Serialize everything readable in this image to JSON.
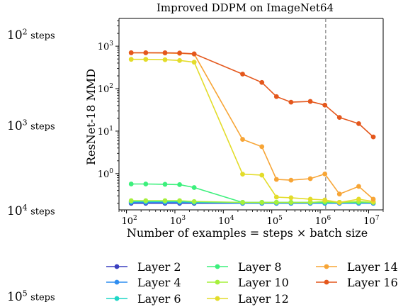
{
  "side_labels": [
    {
      "base": "10",
      "exp": "2",
      "word": "steps"
    },
    {
      "base": "10",
      "exp": "3",
      "word": "steps"
    },
    {
      "base": "10",
      "exp": "4",
      "word": "steps"
    },
    {
      "base": "10",
      "exp": "5",
      "word": "steps"
    }
  ],
  "chart_data": {
    "type": "line",
    "title": "Improved DDPM on ImageNet64",
    "xlabel": "Number of examples = steps × batch size",
    "ylabel": "ResNet-18 MMD",
    "xscale": "log",
    "yscale": "log",
    "xlim": [
      70,
      20000000
    ],
    "ylim": [
      0.14,
      4500
    ],
    "x_ticks": [
      {
        "value": 100,
        "base": "10",
        "exp": "2"
      },
      {
        "value": 1000,
        "base": "10",
        "exp": "3"
      },
      {
        "value": 10000,
        "base": "10",
        "exp": "4"
      },
      {
        "value": 100000,
        "base": "10",
        "exp": "5"
      },
      {
        "value": 1000000,
        "base": "10",
        "exp": "6"
      },
      {
        "value": 10000000,
        "base": "10",
        "exp": "7"
      }
    ],
    "y_ticks": [
      {
        "value": 1,
        "base": "10",
        "exp": "0"
      },
      {
        "value": 10,
        "base": "10",
        "exp": "1"
      },
      {
        "value": 100,
        "base": "10",
        "exp": "2"
      },
      {
        "value": 1000,
        "base": "10",
        "exp": "3"
      }
    ],
    "vline_x": 1300000,
    "grid": false,
    "legend_position": "bottom",
    "x": [
      125,
      250,
      625,
      1250,
      2500,
      25000,
      62500,
      125000,
      250000,
      625000,
      1250000,
      2500000,
      6250000,
      12500000
    ],
    "series": [
      {
        "name": "Layer 2",
        "color": "#3a3fbf",
        "values": [
          0.2,
          0.2,
          0.2,
          0.2,
          0.2,
          0.2,
          0.2,
          0.2,
          0.2,
          0.2,
          0.2,
          0.2,
          0.2,
          0.2
        ]
      },
      {
        "name": "Layer 4",
        "color": "#2f8df0",
        "values": [
          0.21,
          0.21,
          0.21,
          0.21,
          0.21,
          0.2,
          0.2,
          0.2,
          0.2,
          0.2,
          0.2,
          0.2,
          0.2,
          0.2
        ]
      },
      {
        "name": "Layer 6",
        "color": "#1fd6c6",
        "values": [
          0.22,
          0.22,
          0.22,
          0.22,
          0.21,
          0.21,
          0.21,
          0.21,
          0.21,
          0.21,
          0.21,
          0.21,
          0.21,
          0.21
        ]
      },
      {
        "name": "Layer 8",
        "color": "#3cf07c",
        "values": [
          0.57,
          0.57,
          0.56,
          0.55,
          0.47,
          0.21,
          0.21,
          0.21,
          0.21,
          0.21,
          0.21,
          0.21,
          0.21,
          0.21
        ]
      },
      {
        "name": "Layer 10",
        "color": "#a6f03c",
        "values": [
          0.23,
          0.23,
          0.23,
          0.23,
          0.22,
          0.21,
          0.21,
          0.21,
          0.21,
          0.21,
          0.22,
          0.21,
          0.22,
          0.21
        ]
      },
      {
        "name": "Layer 12",
        "color": "#e3dc2a",
        "values": [
          490,
          490,
          480,
          460,
          420,
          0.97,
          0.92,
          0.28,
          0.27,
          0.25,
          0.24,
          0.21,
          0.25,
          0.22
        ]
      },
      {
        "name": "Layer 14",
        "color": "#f7a536",
        "values": [
          700,
          700,
          690,
          680,
          650,
          6.4,
          4.3,
          0.73,
          0.7,
          0.76,
          0.98,
          0.33,
          0.5,
          0.25
        ]
      },
      {
        "name": "Layer 16",
        "color": "#e4571c",
        "values": [
          700,
          700,
          700,
          690,
          660,
          220,
          140,
          65,
          48,
          50,
          41,
          21,
          15,
          7.3
        ]
      }
    ]
  }
}
